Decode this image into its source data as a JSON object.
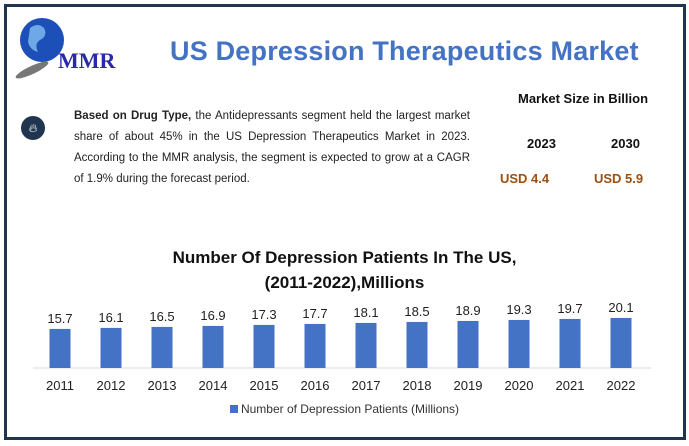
{
  "header": {
    "logo_text": "MMR",
    "title": "US Depression Therapeutics Market"
  },
  "summary": {
    "bold_lead": "Based on Drug Type,",
    "text": " the Antidepressants segment held the largest market share of about 45% in the US Depression Therapeutics Market in 2023. According to the MMR analysis, the segment is expected to grow at a CAGR of 1.9% during the forecast period.",
    "icon": "flame-icon"
  },
  "market_size": {
    "title": "Market Size in Billion",
    "years": [
      "2023",
      "2030"
    ],
    "values": [
      "USD 4.4",
      "USD 5.9"
    ],
    "value_color": "#9c4f0f"
  },
  "chart_data": {
    "type": "bar",
    "title": "Number Of Depression Patients In The US, (2011-2022),Millions",
    "title_lines": [
      "Number Of Depression Patients In The US,",
      "(2011-2022),Millions"
    ],
    "categories": [
      "2011",
      "2012",
      "2013",
      "2014",
      "2015",
      "2016",
      "2017",
      "2018",
      "2019",
      "2020",
      "2021",
      "2022"
    ],
    "series": [
      {
        "name": "Number of Depression Patients (Millions)",
        "values": [
          15.7,
          16.1,
          16.5,
          16.9,
          17.3,
          17.7,
          18.1,
          18.5,
          18.9,
          19.3,
          19.7,
          20.1
        ],
        "color": "#4472c4"
      }
    ],
    "ylim": [
      0,
      21
    ],
    "grid": false,
    "legend": "bottom",
    "data_labels": true
  }
}
